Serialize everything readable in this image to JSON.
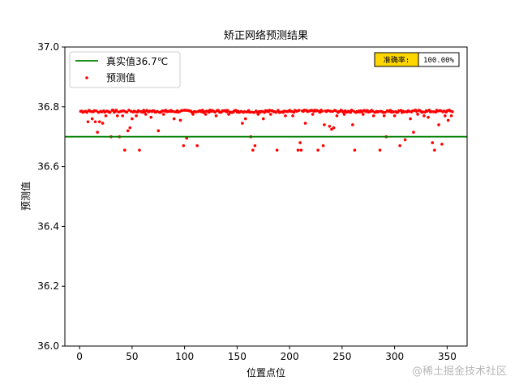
{
  "chart_data": {
    "type": "scatter",
    "title": "矫正网络预测结果",
    "xlabel": "位置点位",
    "ylabel": "预测值",
    "xlim": [
      -14,
      369
    ],
    "ylim": [
      36.0,
      37.0
    ],
    "xticks": [
      "0",
      "50",
      "100",
      "150",
      "200",
      "250",
      "300",
      "350"
    ],
    "yticks": [
      "36.0",
      "36.2",
      "36.4",
      "36.6",
      "36.8",
      "37.0"
    ],
    "grid": false,
    "legend_position": "top-left",
    "reference_line": {
      "name": "真实值36.7℃",
      "value": 36.7,
      "color": "#008000"
    },
    "series": [
      {
        "name": "预测值",
        "color": "#ff0000",
        "base_value": 36.785,
        "x_range": [
          1,
          355
        ],
        "outliers": [
          [
            8,
            36.75
          ],
          [
            12,
            36.76
          ],
          [
            15,
            36.75
          ],
          [
            17,
            36.715
          ],
          [
            19,
            36.75
          ],
          [
            22,
            36.745
          ],
          [
            25,
            36.77
          ],
          [
            30,
            36.7
          ],
          [
            36,
            36.77
          ],
          [
            38,
            36.7
          ],
          [
            41,
            36.77
          ],
          [
            43,
            36.655
          ],
          [
            46,
            36.72
          ],
          [
            48,
            36.73
          ],
          [
            50,
            36.76
          ],
          [
            54,
            36.77
          ],
          [
            57,
            36.655
          ],
          [
            63,
            36.775
          ],
          [
            68,
            36.765
          ],
          [
            75,
            36.72
          ],
          [
            80,
            36.775
          ],
          [
            90,
            36.76
          ],
          [
            96,
            36.755
          ],
          [
            99,
            36.67
          ],
          [
            102,
            36.695
          ],
          [
            108,
            36.775
          ],
          [
            112,
            36.67
          ],
          [
            120,
            36.775
          ],
          [
            130,
            36.77
          ],
          [
            142,
            36.775
          ],
          [
            155,
            36.745
          ],
          [
            158,
            36.76
          ],
          [
            163,
            36.7
          ],
          [
            165,
            36.655
          ],
          [
            167,
            36.67
          ],
          [
            170,
            36.775
          ],
          [
            175,
            36.76
          ],
          [
            182,
            36.775
          ],
          [
            188,
            36.655
          ],
          [
            196,
            36.77
          ],
          [
            203,
            36.77
          ],
          [
            208,
            36.655
          ],
          [
            210,
            36.68
          ],
          [
            211,
            36.655
          ],
          [
            215,
            36.745
          ],
          [
            222,
            36.775
          ],
          [
            227,
            36.655
          ],
          [
            232,
            36.67
          ],
          [
            233,
            36.74
          ],
          [
            238,
            36.735
          ],
          [
            240,
            36.725
          ],
          [
            242,
            36.73
          ],
          [
            245,
            36.77
          ],
          [
            252,
            36.775
          ],
          [
            260,
            36.74
          ],
          [
            262,
            36.655
          ],
          [
            270,
            36.775
          ],
          [
            280,
            36.77
          ],
          [
            286,
            36.655
          ],
          [
            290,
            36.77
          ],
          [
            292,
            36.7
          ],
          [
            300,
            36.77
          ],
          [
            305,
            36.67
          ],
          [
            310,
            36.69
          ],
          [
            315,
            36.76
          ],
          [
            318,
            36.715
          ],
          [
            322,
            36.775
          ],
          [
            328,
            36.77
          ],
          [
            332,
            36.765
          ],
          [
            336,
            36.68
          ],
          [
            338,
            36.655
          ],
          [
            342,
            36.74
          ],
          [
            345,
            36.675
          ],
          [
            348,
            36.77
          ],
          [
            351,
            36.755
          ],
          [
            354,
            36.77
          ]
        ]
      }
    ],
    "accuracy_badge": {
      "label": "准确率:",
      "value": "100.00%",
      "label_color": "#ffd700"
    },
    "watermark": "@稀土掘金技术社区"
  }
}
